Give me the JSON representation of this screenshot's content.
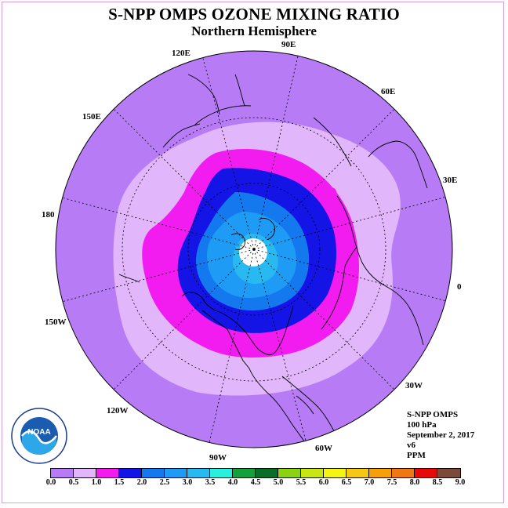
{
  "header": {
    "title": "S-NPP OMPS OZONE MIXING RATIO",
    "subtitle": "Northern Hemisphere"
  },
  "longitude_labels": [
    "90E",
    "60E",
    "30E",
    "0",
    "30W",
    "60W",
    "90W",
    "120W",
    "150W",
    "180",
    "150E",
    "120E"
  ],
  "info": {
    "instrument": "S-NPP OMPS",
    "level": "100 hPa",
    "date": "September 2, 2017",
    "version": "v6",
    "units": "PPM"
  },
  "logo": {
    "name": "NOAA",
    "ring_text": "NATIONAL OCEANIC AND ATMOSPHERIC ADMINISTRATION · U.S. DEPARTMENT OF COMMERCE"
  },
  "colorbar": {
    "ticks": [
      "0.0",
      "0.5",
      "1.0",
      "1.5",
      "2.0",
      "2.5",
      "3.0",
      "3.5",
      "4.0",
      "4.5",
      "5.0",
      "5.5",
      "6.0",
      "6.5",
      "7.0",
      "7.5",
      "8.0",
      "8.5",
      "9.0"
    ],
    "colors": [
      "#b77cf5",
      "#e1b6fa",
      "#f21cf0",
      "#1414e6",
      "#1478ee",
      "#1e9cf5",
      "#28b9f0",
      "#28f0dc",
      "#14a03c",
      "#0a6e28",
      "#8cd214",
      "#c8e614",
      "#f5f514",
      "#f5c814",
      "#f5a00a",
      "#f07814",
      "#e60a0a",
      "#7a4a3a"
    ]
  },
  "map_fill": {
    "level_0_5": "#b77cf5",
    "level_1_0": "#e1b6fa",
    "level_1_5": "#f21cf0",
    "level_2_0": "#1414e6",
    "level_2_5": "#1478ee",
    "level_3_0": "#1e9cf5",
    "level_3_5": "#28b9f0",
    "no_data": "#ffffff"
  }
}
